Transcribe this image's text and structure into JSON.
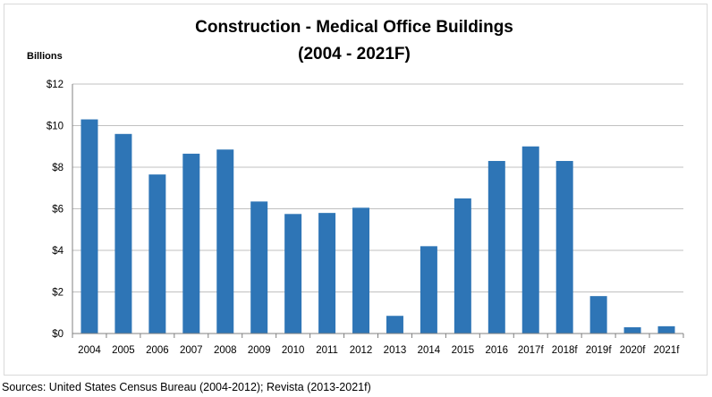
{
  "chart_data": {
    "type": "bar",
    "title_lines": [
      "Construction - Medical Office Buildings",
      "(2004 - 2021F)"
    ],
    "ylabel": "Billions",
    "ylim": [
      0,
      12
    ],
    "ytick_values": [
      0,
      2,
      4,
      6,
      8,
      10,
      12
    ],
    "ytick_labels": [
      "$0",
      "$2",
      "$4",
      "$6",
      "$8",
      "$10",
      "$12"
    ],
    "categories": [
      "2004",
      "2005",
      "2006",
      "2007",
      "2008",
      "2009",
      "2010",
      "2011",
      "2012",
      "2013",
      "2014",
      "2015",
      "2016",
      "2017f",
      "2018f",
      "2019f",
      "2020f",
      "2021f"
    ],
    "values": [
      10.3,
      9.6,
      7.65,
      8.65,
      8.85,
      6.35,
      5.75,
      5.8,
      6.05,
      0.85,
      4.2,
      6.5,
      8.3,
      9.0,
      8.3,
      1.8,
      0.3,
      0.35
    ],
    "bar_color": "#2e75b6",
    "grid": true,
    "grid_color": "#c0c0c0",
    "legend": "none"
  },
  "footer": {
    "source": "Sources: United States Census Bureau  (2004-2012); Revista (2013-2021f)"
  }
}
